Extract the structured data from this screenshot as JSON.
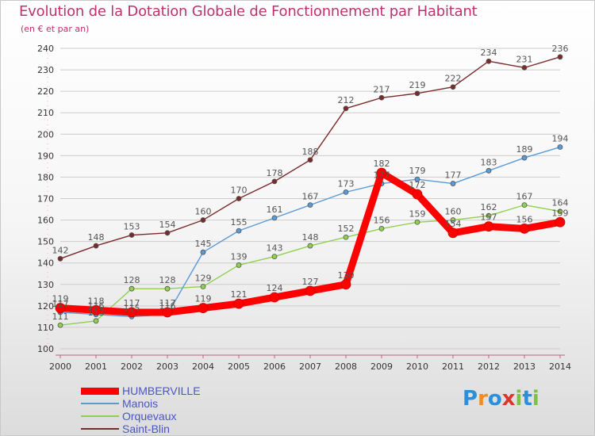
{
  "header": {
    "title": "Evolution de la Dotation Globale de Fonctionnement par Habitant",
    "subtitle": "(en € et par an)"
  },
  "logo": {
    "text": "Proxiti",
    "letters": [
      "P",
      "r",
      "o",
      "x",
      "i",
      "t",
      "i"
    ],
    "colors": [
      "#2b8fd9",
      "#f28c1c",
      "#2b8fd9",
      "#e0342b",
      "#7cc243",
      "#2b8fd9",
      "#7cc243"
    ]
  },
  "colors": {
    "title": "#c0306f",
    "grid": "#cccccc",
    "tick_text": "#333333",
    "value_label": "#555555"
  },
  "chart_data": {
    "type": "line",
    "title": "Evolution de la Dotation Globale de Fonctionnement par Habitant",
    "subtitle": "(en € et par an)",
    "x": [
      "2000",
      "2001",
      "2002",
      "2003",
      "2004",
      "2005",
      "2006",
      "2007",
      "2008",
      "2009",
      "2010",
      "2011",
      "2012",
      "2013",
      "2014"
    ],
    "ylim": [
      100,
      240
    ],
    "yticks": [
      100,
      110,
      120,
      130,
      140,
      150,
      160,
      170,
      180,
      190,
      200,
      210,
      220,
      230,
      240
    ],
    "grid": "horizontal",
    "legend_position": "bottom-left",
    "series": [
      {
        "name": "HUMBERVILLE",
        "color": "#ff0000",
        "emphasis": true,
        "values": [
          119,
          118,
          117,
          117,
          119,
          121,
          124,
          127,
          130,
          182,
          172,
          154,
          157,
          156,
          159
        ]
      },
      {
        "name": "Manois",
        "color": "#5b9bd5",
        "values": [
          117,
          116,
          115,
          116,
          145,
          155,
          161,
          167,
          173,
          177,
          179,
          177,
          183,
          189,
          194
        ]
      },
      {
        "name": "Orquevaux",
        "color": "#8fd14f",
        "values": [
          111,
          113,
          128,
          128,
          129,
          139,
          143,
          148,
          152,
          156,
          159,
          160,
          162,
          167,
          164
        ]
      },
      {
        "name": "Saint-Blin",
        "color": "#7a2a2a",
        "values": [
          142,
          148,
          153,
          154,
          160,
          170,
          178,
          188,
          212,
          217,
          219,
          222,
          234,
          231,
          236
        ]
      }
    ]
  }
}
